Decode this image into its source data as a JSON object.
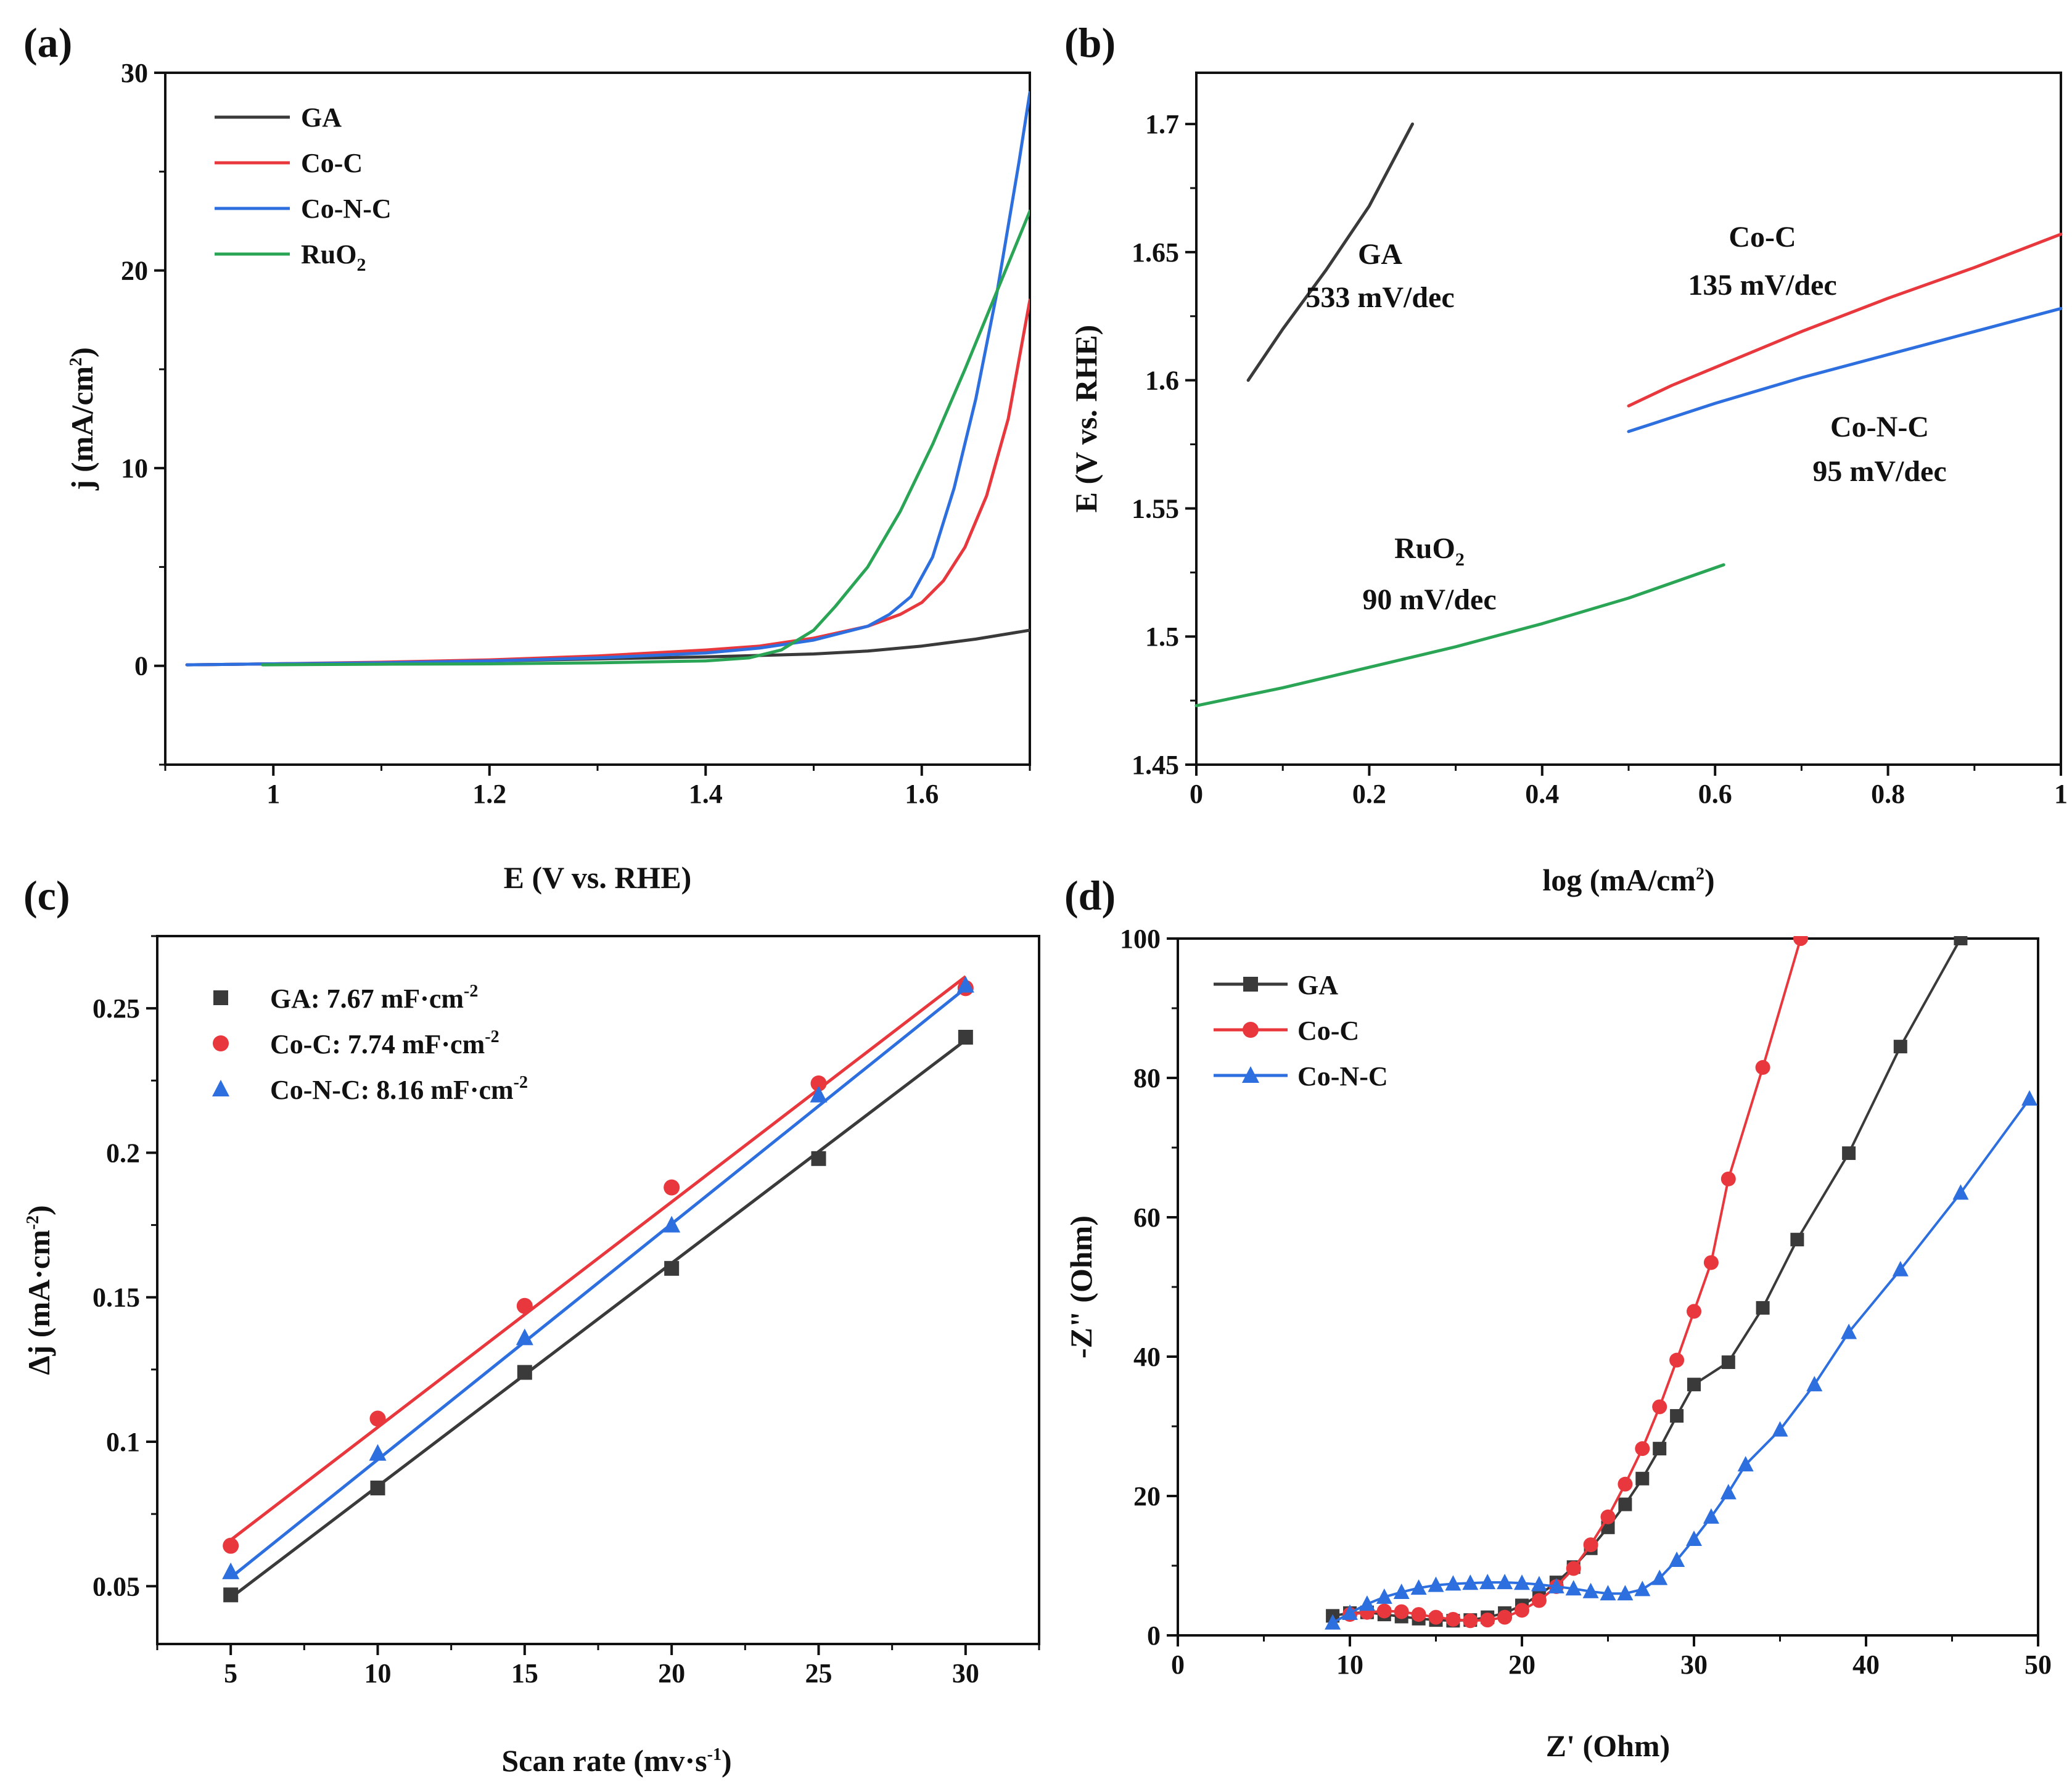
{
  "colors": {
    "GA": "#3a3a3a",
    "Co-C": "#e8383d",
    "Co-N-C": "#2e6fe0",
    "RuO2": "#2aa555"
  },
  "chart_data": [
    {
      "panel": "(a)",
      "type": "line",
      "xlabel": "E (V vs. RHE)",
      "ylabel_main": "j (mA/cm",
      "ylabel_sup": "2",
      "ylabel_close": ")",
      "xlim": [
        0.9,
        1.7
      ],
      "ylim": [
        -5,
        30
      ],
      "xticks": [
        1,
        1.2,
        1.4,
        1.6
      ],
      "xtick_labels": [
        "1",
        "1.2",
        "1.4",
        "1.6"
      ],
      "yticks": [
        0,
        10,
        20,
        30
      ],
      "ytick_labels": [
        "0",
        "10",
        "20",
        "30"
      ],
      "legend": [
        "GA",
        "Co-C",
        "Co-N-C",
        "RuO2"
      ],
      "legend_position": "top-left",
      "series": [
        {
          "name": "GA",
          "x": [
            0.92,
            1.0,
            1.1,
            1.2,
            1.3,
            1.4,
            1.5,
            1.55,
            1.6,
            1.65,
            1.7
          ],
          "y": [
            0.05,
            0.1,
            0.15,
            0.25,
            0.35,
            0.45,
            0.6,
            0.75,
            1.0,
            1.35,
            1.8
          ]
        },
        {
          "name": "Co-C",
          "x": [
            0.92,
            1.0,
            1.1,
            1.2,
            1.3,
            1.4,
            1.45,
            1.5,
            1.55,
            1.58,
            1.6,
            1.62,
            1.64,
            1.66,
            1.68,
            1.7
          ],
          "y": [
            0.05,
            0.1,
            0.18,
            0.3,
            0.5,
            0.8,
            1.0,
            1.4,
            2.0,
            2.6,
            3.2,
            4.3,
            6.0,
            8.6,
            12.5,
            18.5
          ]
        },
        {
          "name": "Co-N-C",
          "x": [
            0.92,
            1.0,
            1.1,
            1.2,
            1.3,
            1.4,
            1.45,
            1.5,
            1.55,
            1.57,
            1.59,
            1.61,
            1.63,
            1.65,
            1.67,
            1.69,
            1.7
          ],
          "y": [
            0.05,
            0.1,
            0.15,
            0.25,
            0.4,
            0.65,
            0.9,
            1.3,
            2.0,
            2.6,
            3.5,
            5.5,
            9.0,
            13.5,
            19.0,
            25.5,
            29.0
          ]
        },
        {
          "name": "RuO2",
          "x": [
            0.99,
            1.1,
            1.2,
            1.3,
            1.4,
            1.44,
            1.47,
            1.5,
            1.52,
            1.55,
            1.58,
            1.61,
            1.64,
            1.67,
            1.7
          ],
          "y": [
            0.05,
            0.08,
            0.1,
            0.15,
            0.25,
            0.4,
            0.8,
            1.8,
            3.0,
            5.0,
            7.8,
            11.2,
            15.0,
            19.0,
            23.0
          ]
        }
      ]
    },
    {
      "panel": "(b)",
      "type": "line",
      "xlabel_main": "log (mA/cm",
      "xlabel_sup": "2",
      "xlabel_close": ")",
      "ylabel": "E (V vs. RHE)",
      "xlim": [
        0,
        1
      ],
      "ylim": [
        1.45,
        1.72
      ],
      "xticks": [
        0,
        0.2,
        0.4,
        0.6,
        0.8,
        1
      ],
      "xtick_labels": [
        "0",
        "0.2",
        "0.4",
        "0.6",
        "0.8",
        "1"
      ],
      "yticks": [
        1.45,
        1.5,
        1.55,
        1.6,
        1.65,
        1.7
      ],
      "ytick_labels": [
        "1.45",
        "1.5",
        "1.55",
        "1.6",
        "1.65",
        "1.7"
      ],
      "series": [
        {
          "name": "GA",
          "x": [
            0.06,
            0.1,
            0.15,
            0.2,
            0.25
          ],
          "y": [
            1.6,
            1.62,
            1.643,
            1.668,
            1.7
          ]
        },
        {
          "name": "Co-C",
          "x": [
            0.5,
            0.55,
            0.6,
            0.7,
            0.8,
            0.9,
            1.0
          ],
          "y": [
            1.59,
            1.598,
            1.605,
            1.619,
            1.632,
            1.644,
            1.657
          ]
        },
        {
          "name": "Co-N-C",
          "x": [
            0.5,
            0.6,
            0.7,
            0.8,
            0.9,
            1.0
          ],
          "y": [
            1.58,
            1.591,
            1.601,
            1.61,
            1.619,
            1.628
          ]
        },
        {
          "name": "RuO2",
          "x": [
            0.0,
            0.1,
            0.2,
            0.3,
            0.4,
            0.5,
            0.61
          ],
          "y": [
            1.473,
            1.48,
            1.488,
            1.496,
            1.505,
            1.515,
            1.528
          ]
        }
      ],
      "annotations": [
        {
          "series": "GA",
          "name": "GA",
          "slope": "533 mV/dec"
        },
        {
          "series": "Co-C",
          "name": "Co-C",
          "slope": "135 mV/dec"
        },
        {
          "series": "Co-N-C",
          "name": "Co-N-C",
          "slope": "95 mV/dec"
        },
        {
          "series": "RuO2",
          "name_main": "RuO",
          "name_sub": "2",
          "slope": "90 mV/dec"
        }
      ]
    },
    {
      "panel": "(c)",
      "type": "scatter",
      "xlabel_main": "Scan rate (mv·s",
      "xlabel_sup": "-1",
      "xlabel_close": ")",
      "ylabel_main": "Δj (mA·cm",
      "ylabel_sup": "-2",
      "ylabel_close": ")",
      "xlim": [
        2.5,
        32.5
      ],
      "ylim": [
        0.03,
        0.275
      ],
      "xticks": [
        5,
        10,
        15,
        20,
        25,
        30
      ],
      "xtick_labels": [
        "5",
        "10",
        "15",
        "20",
        "25",
        "30"
      ],
      "yticks": [
        0.05,
        0.1,
        0.15,
        0.2,
        0.25
      ],
      "ytick_labels": [
        "0.05",
        "0.1",
        "0.15",
        "0.2",
        "0.25"
      ],
      "legend_position": "top-left",
      "x": [
        5,
        10,
        15,
        20,
        25,
        30
      ],
      "series": [
        {
          "name": "GA",
          "marker": "square",
          "legend_main": "GA: 7.67 mF·cm",
          "legend_sup": "-2",
          "y": [
            0.047,
            0.084,
            0.124,
            0.16,
            0.198,
            0.24
          ],
          "fit": [
            0.046,
            0.239
          ]
        },
        {
          "name": "Co-C",
          "marker": "circle",
          "legend_main": "Co-C: 7.74 mF·cm",
          "legend_sup": "-2",
          "y": [
            0.064,
            0.108,
            0.147,
            0.188,
            0.224,
            0.257
          ],
          "fit": [
            0.066,
            0.261
          ]
        },
        {
          "name": "Co-N-C",
          "marker": "triangle",
          "legend_main": "Co-N-C: 8.16 mF·cm",
          "legend_sup": "-2",
          "y": [
            0.055,
            0.096,
            0.136,
            0.175,
            0.22,
            0.258
          ],
          "fit": [
            0.053,
            0.257
          ]
        }
      ]
    },
    {
      "panel": "(d)",
      "type": "line",
      "xlabel": "Z' (Ohm)",
      "ylabel": "-Z\" (Ohm)",
      "xlim": [
        0,
        50
      ],
      "ylim": [
        0,
        100
      ],
      "xticks": [
        0,
        10,
        20,
        30,
        40,
        50
      ],
      "xtick_labels": [
        "0",
        "10",
        "20",
        "30",
        "40",
        "50"
      ],
      "yticks": [
        0,
        20,
        40,
        60,
        80,
        100
      ],
      "ytick_labels": [
        "0",
        "20",
        "40",
        "60",
        "80",
        "100"
      ],
      "legend": [
        "GA",
        "Co-C",
        "Co-N-C"
      ],
      "legend_position": "top-left",
      "series": [
        {
          "name": "GA",
          "marker": "square",
          "x": [
            9,
            10,
            11,
            12,
            13,
            14,
            15,
            16,
            17,
            18,
            19,
            20,
            21,
            22,
            23,
            24,
            25,
            26,
            27,
            28,
            29,
            30,
            32,
            34,
            36,
            39,
            42,
            45.5
          ],
          "y": [
            2.8,
            3.2,
            3.3,
            3.0,
            2.7,
            2.4,
            2.2,
            2.1,
            2.2,
            2.6,
            3.2,
            4.3,
            5.8,
            7.6,
            9.8,
            12.5,
            15.5,
            18.8,
            22.5,
            26.8,
            31.5,
            36.0,
            39.2,
            47.0,
            56.8,
            69.2,
            84.5,
            100.0
          ]
        },
        {
          "name": "Co-C",
          "marker": "circle",
          "x": [
            10,
            11,
            12,
            13,
            14,
            15,
            16,
            17,
            18,
            19,
            20,
            21,
            22,
            23,
            24,
            25,
            26,
            27,
            28,
            29,
            30,
            31,
            32,
            34,
            36.2
          ],
          "y": [
            3.0,
            3.3,
            3.5,
            3.4,
            3.0,
            2.6,
            2.3,
            2.1,
            2.2,
            2.6,
            3.6,
            5.0,
            7.0,
            9.6,
            13.0,
            17.0,
            21.7,
            26.8,
            32.8,
            39.5,
            46.5,
            53.5,
            65.5,
            81.5,
            100.0
          ]
        },
        {
          "name": "Co-N-C",
          "marker": "triangle",
          "x": [
            9,
            10,
            11,
            12,
            13,
            14,
            15,
            16,
            17,
            18,
            19,
            20,
            21,
            22,
            23,
            24,
            25,
            26,
            27,
            28,
            29,
            30,
            31,
            32,
            33,
            35,
            37,
            39,
            42,
            45.5,
            49.5
          ],
          "y": [
            1.8,
            3.2,
            4.5,
            5.5,
            6.2,
            6.8,
            7.2,
            7.4,
            7.5,
            7.6,
            7.6,
            7.5,
            7.3,
            7.0,
            6.7,
            6.3,
            6.0,
            6.0,
            6.6,
            8.2,
            10.8,
            13.8,
            17.0,
            20.5,
            24.5,
            29.5,
            36.0,
            43.5,
            52.5,
            63.5,
            77.0
          ]
        }
      ]
    }
  ]
}
